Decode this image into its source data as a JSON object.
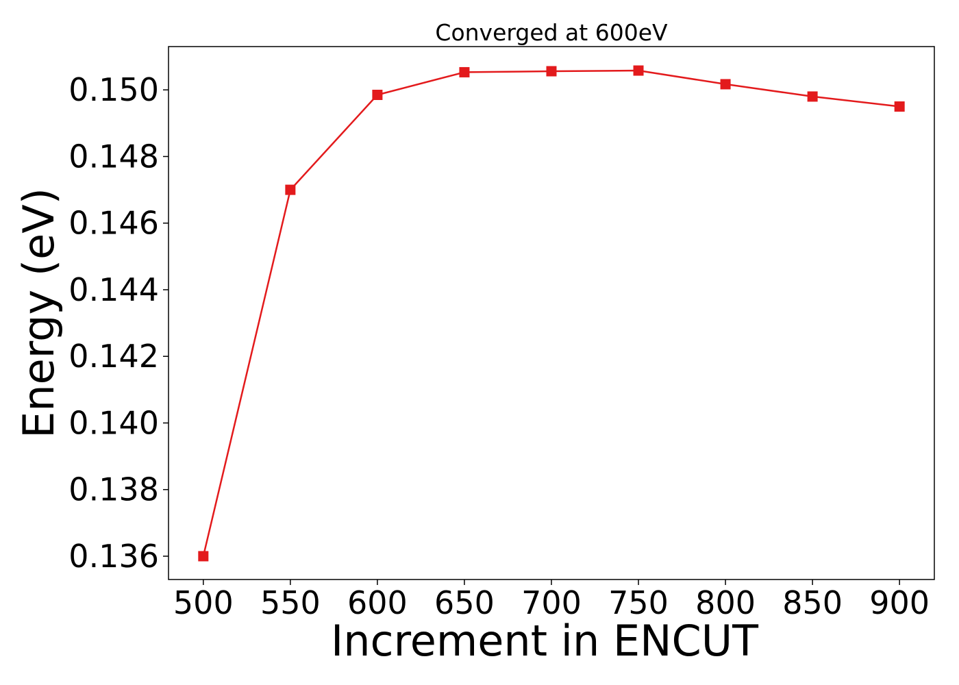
{
  "chart_data": {
    "type": "line",
    "title": "Converged at 600eV",
    "xlabel": "Increment in ENCUT",
    "ylabel": "Energy (eV)",
    "x": [
      500,
      550,
      600,
      650,
      700,
      750,
      800,
      850,
      900
    ],
    "series": [
      {
        "values": [
          0.136,
          0.147,
          0.14985,
          0.15053,
          0.15056,
          0.15058,
          0.15017,
          0.1498,
          0.1495
        ],
        "color": "#e31a1c",
        "marker": "square"
      }
    ],
    "xlim": [
      480,
      920
    ],
    "ylim": [
      0.1353,
      0.1513
    ],
    "xticks": [
      500,
      550,
      600,
      650,
      700,
      750,
      800,
      850,
      900
    ],
    "xtick_labels": [
      "500",
      "550",
      "600",
      "650",
      "700",
      "750",
      "800",
      "850",
      "900"
    ],
    "yticks": [
      0.136,
      0.138,
      0.14,
      0.142,
      0.144,
      0.146,
      0.148,
      0.15
    ],
    "ytick_labels": [
      "0.136",
      "0.138",
      "0.140",
      "0.142",
      "0.144",
      "0.146",
      "0.148",
      "0.150"
    ],
    "grid": false,
    "legend": false
  }
}
